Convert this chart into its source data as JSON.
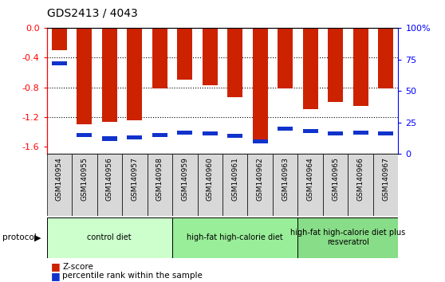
{
  "title": "GDS2413 / 4043",
  "samples": [
    "GSM140954",
    "GSM140955",
    "GSM140956",
    "GSM140957",
    "GSM140958",
    "GSM140959",
    "GSM140960",
    "GSM140961",
    "GSM140962",
    "GSM140963",
    "GSM140964",
    "GSM140965",
    "GSM140966",
    "GSM140967"
  ],
  "zscore": [
    -0.3,
    -1.3,
    -1.27,
    -1.25,
    -0.82,
    -0.7,
    -0.77,
    -0.93,
    -1.52,
    -0.82,
    -1.1,
    -1.0,
    -1.05,
    -0.82
  ],
  "pct_rank_values": [
    72,
    15,
    12,
    13,
    15,
    17,
    16,
    14,
    10,
    20,
    18,
    16,
    17,
    16
  ],
  "groups": [
    {
      "label": "control diet",
      "start": 0,
      "end": 5,
      "color": "#ccffcc"
    },
    {
      "label": "high-fat high-calorie diet",
      "start": 5,
      "end": 10,
      "color": "#99ee99"
    },
    {
      "label": "high-fat high-calorie diet plus\nresveratrol",
      "start": 10,
      "end": 14,
      "color": "#88dd88"
    }
  ],
  "ylim_left": [
    -1.7,
    0.0
  ],
  "ylim_right": [
    0,
    100
  ],
  "bar_color_red": "#cc2200",
  "bar_color_blue": "#1133cc",
  "plot_bg": "#ffffff",
  "left_ticks": [
    0.0,
    -0.4,
    -0.8,
    -1.2,
    -1.6
  ],
  "right_ticks": [
    100,
    75,
    50,
    25,
    0
  ],
  "bar_width": 0.6,
  "blue_bar_height": 0.055
}
